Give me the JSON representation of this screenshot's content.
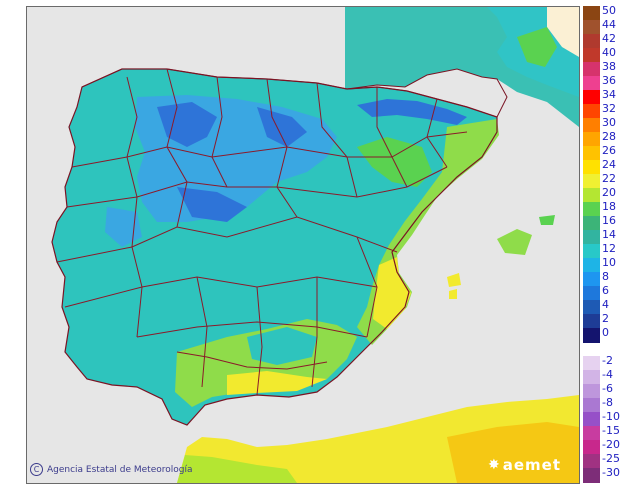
{
  "map": {
    "credit": "Agencia Estatal de Meteorología",
    "copyright_symbol": "C",
    "logo": "aemet",
    "colors": {
      "sea": "#e6e6e6",
      "land_base": "#2ec4bd",
      "cool_inland": "#3aa7e2",
      "cold_mountain": "#2e74d8",
      "warm_coast": "#8fdc4a",
      "hot": "#f2ea2e",
      "hotter": "#f7c814",
      "borders": "#8b1a2a"
    }
  },
  "legend": {
    "positive": [
      {
        "label": "50",
        "color": "#8b4513"
      },
      {
        "label": "44",
        "color": "#a0522d"
      },
      {
        "label": "42",
        "color": "#b03a2e"
      },
      {
        "label": "40",
        "color": "#c0392b"
      },
      {
        "label": "38",
        "color": "#d6336c"
      },
      {
        "label": "36",
        "color": "#ee4090"
      },
      {
        "label": "34",
        "color": "#ff0000"
      },
      {
        "label": "32",
        "color": "#ff4500"
      },
      {
        "label": "30",
        "color": "#ff7f00"
      },
      {
        "label": "28",
        "color": "#ffa500"
      },
      {
        "label": "26",
        "color": "#ffc200"
      },
      {
        "label": "24",
        "color": "#ffe100"
      },
      {
        "label": "22",
        "color": "#f0f032"
      },
      {
        "label": "20",
        "color": "#b4e632"
      },
      {
        "label": "18",
        "color": "#5ad250"
      },
      {
        "label": "16",
        "color": "#3cb478"
      },
      {
        "label": "14",
        "color": "#32b4a0"
      },
      {
        "label": "12",
        "color": "#28c8c8"
      },
      {
        "label": "10",
        "color": "#1eb4e6"
      },
      {
        "label": "8",
        "color": "#1e96f0"
      },
      {
        "label": "6",
        "color": "#1e78dc"
      },
      {
        "label": "4",
        "color": "#1e5ab4"
      },
      {
        "label": "2",
        "color": "#1e3c96"
      },
      {
        "label": "0",
        "color": "#14146e"
      }
    ],
    "negative": [
      {
        "label": "-2",
        "color": "#e6d2f0"
      },
      {
        "label": "-4",
        "color": "#d2b4e6"
      },
      {
        "label": "-6",
        "color": "#be96dc"
      },
      {
        "label": "-8",
        "color": "#aa78d2"
      },
      {
        "label": "-10",
        "color": "#9650c8"
      },
      {
        "label": "-15",
        "color": "#c83ca0"
      },
      {
        "label": "-20",
        "color": "#c8288c"
      },
      {
        "label": "-25",
        "color": "#a03282"
      },
      {
        "label": "-30",
        "color": "#7d2d78"
      }
    ]
  }
}
